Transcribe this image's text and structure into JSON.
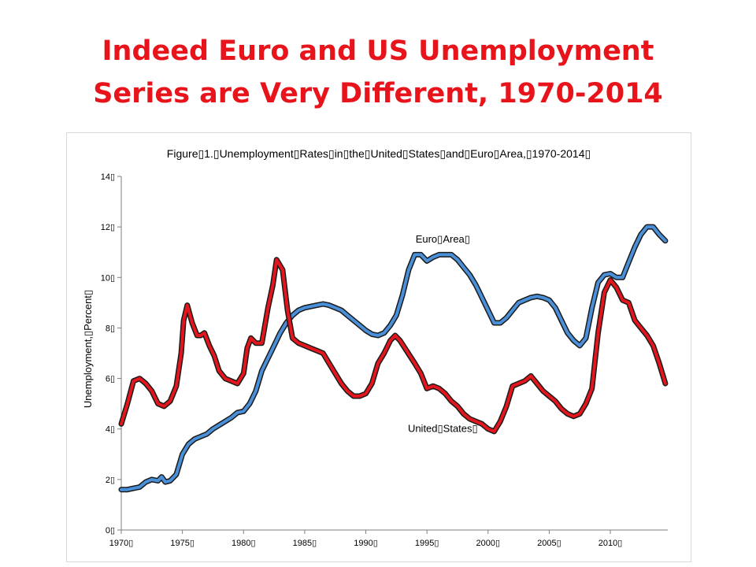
{
  "slide": {
    "title_line1": "Indeed Euro and US Unemployment",
    "title_line2": "Series are Very Different, 1970-2014",
    "title_color": "#e8141b"
  },
  "chart_data": {
    "type": "line",
    "title": "Figure▯1.▯Unemployment▯Rates▯in▯the▯United▯States▯and▯Euro▯Area,▯1970-2014▯",
    "ylabel": "Unemployment,▯Percent▯",
    "xlabel": "",
    "xlim": [
      1970,
      2014.7
    ],
    "ylim": [
      0,
      14
    ],
    "yticks": [
      0,
      2,
      4,
      6,
      8,
      10,
      12,
      14
    ],
    "ytick_labels": [
      "0▯",
      "2▯",
      "4▯",
      "6▯",
      "8▯",
      "10▯",
      "12▯",
      "14▯"
    ],
    "xticks": [
      1970,
      1975,
      1980,
      1985,
      1990,
      1995,
      2000,
      2005,
      2010
    ],
    "xtick_labels": [
      "1970▯",
      "1975▯",
      "1980▯",
      "1985▯",
      "1990▯",
      "1995▯",
      "2000▯",
      "2005▯",
      "2010▯"
    ],
    "grid": false,
    "series": [
      {
        "name": "Euro▯Area▯",
        "color": "#4a90d9",
        "label_anchor": [
          1996.3,
          11.5
        ],
        "x": [
          1970.0,
          1970.5,
          1971.0,
          1971.5,
          1972.0,
          1972.5,
          1973.0,
          1973.3,
          1973.6,
          1974.0,
          1974.5,
          1975.0,
          1975.5,
          1976.0,
          1976.5,
          1977.0,
          1977.5,
          1978.0,
          1978.5,
          1979.0,
          1979.5,
          1980.0,
          1980.5,
          1981.0,
          1981.5,
          1982.0,
          1982.5,
          1983.0,
          1983.5,
          1984.0,
          1984.5,
          1985.0,
          1985.5,
          1986.0,
          1986.5,
          1987.0,
          1987.5,
          1988.0,
          1988.5,
          1989.0,
          1989.5,
          1990.0,
          1990.5,
          1991.0,
          1991.5,
          1992.0,
          1992.5,
          1993.0,
          1993.5,
          1994.0,
          1994.5,
          1995.0,
          1995.5,
          1996.0,
          1996.5,
          1997.0,
          1997.5,
          1998.0,
          1998.5,
          1999.0,
          1999.5,
          2000.0,
          2000.5,
          2001.0,
          2001.5,
          2002.0,
          2002.5,
          2003.0,
          2003.5,
          2004.0,
          2004.5,
          2005.0,
          2005.5,
          2006.0,
          2006.5,
          2007.0,
          2007.5,
          2008.0,
          2008.5,
          2009.0,
          2009.5,
          2010.0,
          2010.5,
          2011.0,
          2011.5,
          2012.0,
          2012.5,
          2013.0,
          2013.5,
          2014.0,
          2014.5
        ],
        "values": [
          1.6,
          1.6,
          1.65,
          1.7,
          1.9,
          2.0,
          1.95,
          2.1,
          1.9,
          1.95,
          2.2,
          3.0,
          3.4,
          3.6,
          3.7,
          3.8,
          4.0,
          4.15,
          4.3,
          4.45,
          4.65,
          4.7,
          5.0,
          5.5,
          6.3,
          6.8,
          7.3,
          7.8,
          8.2,
          8.5,
          8.7,
          8.8,
          8.85,
          8.9,
          8.95,
          8.9,
          8.8,
          8.7,
          8.5,
          8.3,
          8.1,
          7.9,
          7.75,
          7.7,
          7.8,
          8.1,
          8.5,
          9.3,
          10.3,
          10.9,
          10.9,
          10.65,
          10.8,
          10.9,
          10.9,
          10.9,
          10.7,
          10.4,
          10.1,
          9.7,
          9.2,
          8.7,
          8.2,
          8.2,
          8.4,
          8.7,
          9.0,
          9.1,
          9.2,
          9.25,
          9.2,
          9.1,
          8.8,
          8.3,
          7.8,
          7.5,
          7.3,
          7.6,
          8.8,
          9.8,
          10.1,
          10.15,
          10.0,
          10.0,
          10.6,
          11.2,
          11.7,
          12.0,
          12.0,
          11.7,
          11.45
        ]
      },
      {
        "name": "United▯States▯",
        "color": "#e3161e",
        "label_anchor": [
          1996.3,
          4.0
        ],
        "x": [
          1970.0,
          1970.5,
          1971.0,
          1971.5,
          1972.0,
          1972.5,
          1973.0,
          1973.5,
          1974.0,
          1974.5,
          1974.9,
          1975.1,
          1975.4,
          1975.8,
          1976.2,
          1976.5,
          1976.8,
          1977.2,
          1977.6,
          1978.0,
          1978.5,
          1979.0,
          1979.5,
          1980.0,
          1980.3,
          1980.6,
          1981.0,
          1981.5,
          1982.0,
          1982.4,
          1982.7,
          1983.2,
          1983.6,
          1984.0,
          1984.5,
          1985.0,
          1985.5,
          1986.0,
          1986.5,
          1987.0,
          1987.5,
          1988.0,
          1988.5,
          1989.0,
          1989.5,
          1990.0,
          1990.5,
          1991.0,
          1991.5,
          1992.0,
          1992.4,
          1992.8,
          1993.2,
          1993.6,
          1994.0,
          1994.5,
          1995.0,
          1995.5,
          1996.0,
          1996.5,
          1997.0,
          1997.5,
          1998.0,
          1998.5,
          1999.0,
          1999.5,
          2000.0,
          2000.5,
          2001.0,
          2001.5,
          2002.0,
          2002.5,
          2003.0,
          2003.5,
          2004.0,
          2004.5,
          2005.0,
          2005.5,
          2006.0,
          2006.5,
          2007.0,
          2007.5,
          2008.0,
          2008.5,
          2009.0,
          2009.5,
          2010.0,
          2010.5,
          2011.0,
          2011.5,
          2012.0,
          2012.5,
          2013.0,
          2013.5,
          2014.0,
          2014.5
        ],
        "values": [
          4.2,
          5.0,
          5.9,
          6.0,
          5.8,
          5.5,
          5.0,
          4.9,
          5.1,
          5.7,
          7.0,
          8.3,
          8.9,
          8.2,
          7.7,
          7.7,
          7.8,
          7.3,
          6.9,
          6.3,
          6.0,
          5.9,
          5.8,
          6.2,
          7.2,
          7.6,
          7.4,
          7.4,
          8.8,
          9.7,
          10.7,
          10.3,
          8.7,
          7.6,
          7.4,
          7.3,
          7.2,
          7.1,
          7.0,
          6.6,
          6.2,
          5.8,
          5.5,
          5.3,
          5.3,
          5.4,
          5.8,
          6.6,
          7.0,
          7.5,
          7.7,
          7.5,
          7.2,
          6.9,
          6.6,
          6.2,
          5.6,
          5.7,
          5.6,
          5.4,
          5.1,
          4.9,
          4.6,
          4.4,
          4.3,
          4.2,
          4.0,
          3.9,
          4.3,
          4.9,
          5.7,
          5.8,
          5.9,
          6.1,
          5.8,
          5.5,
          5.3,
          5.1,
          4.8,
          4.6,
          4.5,
          4.6,
          5.0,
          5.6,
          7.8,
          9.4,
          9.9,
          9.6,
          9.1,
          9.0,
          8.3,
          8.0,
          7.7,
          7.3,
          6.6,
          5.8
        ]
      }
    ]
  }
}
